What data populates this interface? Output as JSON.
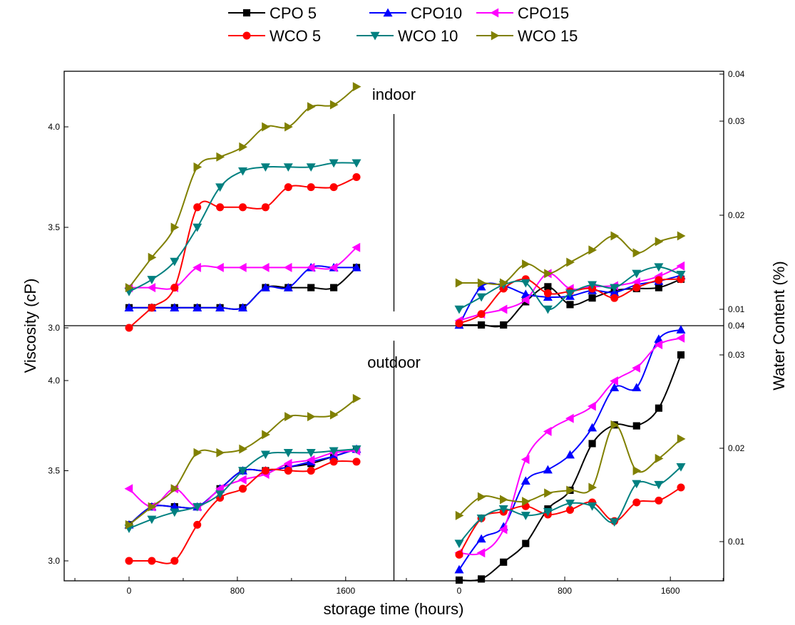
{
  "chart_data": {
    "type": "line",
    "layout": "2x2 panels sharing axes; rows: indoor (top), outdoor (bottom); left column plots Viscosity, right column plots Water Content",
    "xlabel": "storage time (hours)",
    "ylabel_left": "Viscosity (cP)",
    "ylabel_right": "Water Content (%)",
    "x_ticks": [
      "0",
      "800",
      "1600"
    ],
    "xlim": [
      -480,
      1980
    ],
    "legend": {
      "position": "top-center",
      "columns": 3
    },
    "legend_entries": [
      "CPO 5",
      "CPO10",
      "CPO15",
      "WCO 5",
      "WCO 10",
      "WCO 15"
    ],
    "series_styles": [
      {
        "name": "CPO 5",
        "color": "#000000",
        "marker": "square"
      },
      {
        "name": "CPO10",
        "color": "#0000ff",
        "marker": "triangle-up"
      },
      {
        "name": "CPO15",
        "color": "#ff00ff",
        "marker": "triangle-left"
      },
      {
        "name": "WCO 5",
        "color": "#ff0000",
        "marker": "circle"
      },
      {
        "name": "WCO 10",
        "color": "#008080",
        "marker": "triangle-down"
      },
      {
        "name": "WCO 15",
        "color": "#808000",
        "marker": "triangle-right"
      }
    ],
    "panels": [
      {
        "label": "indoor",
        "viscosity": {
          "ylim": [
            2.9,
            4.25
          ],
          "y_ticks": [
            "3.0",
            "3.5",
            "4.0"
          ],
          "x": [
            0,
            168,
            336,
            504,
            672,
            840,
            1008,
            1176,
            1344,
            1512,
            1680
          ],
          "series": [
            {
              "name": "CPO 5",
              "values": [
                3.1,
                3.1,
                3.1,
                3.1,
                3.1,
                3.1,
                3.2,
                3.2,
                3.2,
                3.2,
                3.3
              ]
            },
            {
              "name": "CPO10",
              "values": [
                3.1,
                3.1,
                3.1,
                3.1,
                3.1,
                3.1,
                3.2,
                3.2,
                3.3,
                3.3,
                3.3
              ]
            },
            {
              "name": "CPO15",
              "values": [
                3.2,
                3.2,
                3.2,
                3.3,
                3.3,
                3.3,
                3.3,
                3.3,
                3.3,
                3.3,
                3.4
              ]
            },
            {
              "name": "WCO 5",
              "values": [
                3.0,
                3.1,
                3.2,
                3.6,
                3.6,
                3.6,
                3.6,
                3.7,
                3.7,
                3.7,
                3.75
              ]
            },
            {
              "name": "WCO 10",
              "values": [
                3.18,
                3.24,
                3.33,
                3.5,
                3.7,
                3.78,
                3.8,
                3.8,
                3.8,
                3.82,
                3.82
              ]
            },
            {
              "name": "WCO 15",
              "values": [
                3.2,
                3.35,
                3.5,
                3.8,
                3.85,
                3.9,
                4.0,
                4.0,
                4.1,
                4.11,
                4.2
              ]
            }
          ]
        },
        "water_content": {
          "ylim": [
            0.004,
            0.04
          ],
          "y_ticks": [
            "0.01",
            "0.02",
            "0.03",
            "0.04"
          ],
          "x": [
            0,
            168,
            336,
            504,
            672,
            840,
            1008,
            1176,
            1344,
            1512,
            1680
          ],
          "series": [
            {
              "name": "CPO 5",
              "values": [
                0.004,
                0.0052,
                0.0076,
                0.0108,
                0.0124,
                0.0105,
                0.0112,
                0.012,
                0.0122,
                0.0123,
                0.0132
              ]
            },
            {
              "name": "CPO10",
              "values": [
                0.0072,
                0.0124,
                0.0125,
                0.0116,
                0.0113,
                0.0114,
                0.012,
                0.0118,
                0.0126,
                0.013,
                0.0136
              ]
            },
            {
              "name": "CPO15",
              "values": [
                0.0088,
                0.0095,
                0.01,
                0.011,
                0.0138,
                0.0122,
                0.0124,
                0.0125,
                0.0129,
                0.0135,
                0.0146
              ]
            },
            {
              "name": "WCO 5",
              "values": [
                0.0085,
                0.0095,
                0.0122,
                0.0132,
                0.0117,
                0.0119,
                0.0122,
                0.0112,
                0.0123,
                0.0131,
                0.0132
              ]
            },
            {
              "name": "WCO 10",
              "values": [
                0.01,
                0.0113,
                0.0126,
                0.0128,
                0.01,
                0.0117,
                0.0126,
                0.0123,
                0.0138,
                0.0145,
                0.0137
              ]
            },
            {
              "name": "WCO 15",
              "values": [
                0.0128,
                0.0128,
                0.0128,
                0.0148,
                0.0138,
                0.015,
                0.0163,
                0.0178,
                0.016,
                0.0172,
                0.0178
              ]
            }
          ]
        }
      },
      {
        "label": "outdoor",
        "viscosity": {
          "ylim": [
            2.9,
            4.25
          ],
          "y_ticks": [
            "3.0",
            "3.5",
            "4.0"
          ],
          "x": [
            0,
            168,
            336,
            504,
            672,
            840,
            1008,
            1176,
            1344,
            1512,
            1680
          ],
          "series": [
            {
              "name": "CPO 5",
              "values": [
                3.2,
                3.3,
                3.3,
                3.3,
                3.4,
                3.5,
                3.5,
                3.52,
                3.54,
                3.58,
                3.62
              ]
            },
            {
              "name": "CPO10",
              "values": [
                3.2,
                3.3,
                3.3,
                3.3,
                3.4,
                3.5,
                3.5,
                3.52,
                3.55,
                3.58,
                3.62
              ]
            },
            {
              "name": "CPO15",
              "values": [
                3.4,
                3.3,
                3.4,
                3.3,
                3.4,
                3.45,
                3.48,
                3.54,
                3.56,
                3.6,
                3.61
              ]
            },
            {
              "name": "WCO 5",
              "values": [
                3.0,
                3.0,
                3.0,
                3.2,
                3.35,
                3.4,
                3.5,
                3.5,
                3.5,
                3.55,
                3.55
              ]
            },
            {
              "name": "WCO 10",
              "values": [
                3.18,
                3.23,
                3.27,
                3.3,
                3.37,
                3.5,
                3.59,
                3.6,
                3.6,
                3.61,
                3.62
              ]
            },
            {
              "name": "WCO 15",
              "values": [
                3.2,
                3.3,
                3.4,
                3.6,
                3.6,
                3.62,
                3.7,
                3.8,
                3.8,
                3.81,
                3.9
              ]
            }
          ]
        },
        "water_content": {
          "ylim": [
            0.005,
            0.04
          ],
          "y_ticks": [
            "0.01",
            "0.02",
            "0.03"
          ],
          "x": [
            0,
            168,
            336,
            504,
            672,
            840,
            1008,
            1176,
            1344,
            1512,
            1680
          ],
          "series": [
            {
              "name": "CPO 5",
              "values": [
                0.005,
                0.006,
                0.0078,
                0.0098,
                0.0135,
                0.0155,
                0.0205,
                0.0225,
                0.0224,
                0.0243,
                0.03
              ]
            },
            {
              "name": "CPO10",
              "values": [
                0.007,
                0.0103,
                0.0116,
                0.0165,
                0.0177,
                0.0193,
                0.0222,
                0.0265,
                0.0265,
                0.0317,
                0.0327
              ]
            },
            {
              "name": "CPO15",
              "values": [
                0.0088,
                0.0088,
                0.0113,
                0.0188,
                0.0218,
                0.0232,
                0.0245,
                0.0272,
                0.0286,
                0.0311,
                0.0318
              ]
            },
            {
              "name": "WCO 5",
              "values": [
                0.0086,
                0.0125,
                0.0132,
                0.0138,
                0.0129,
                0.0134,
                0.0142,
                0.0122,
                0.0142,
                0.0144,
                0.0158
              ]
            },
            {
              "name": "WCO 10",
              "values": [
                0.0098,
                0.0125,
                0.0135,
                0.0128,
                0.0132,
                0.0141,
                0.0138,
                0.0121,
                0.0162,
                0.0161,
                0.018
              ]
            },
            {
              "name": "WCO 15",
              "values": [
                0.0128,
                0.0148,
                0.0145,
                0.0143,
                0.0152,
                0.0155,
                0.0158,
                0.0225,
                0.0176,
                0.0189,
                0.021
              ]
            }
          ]
        }
      }
    ]
  }
}
